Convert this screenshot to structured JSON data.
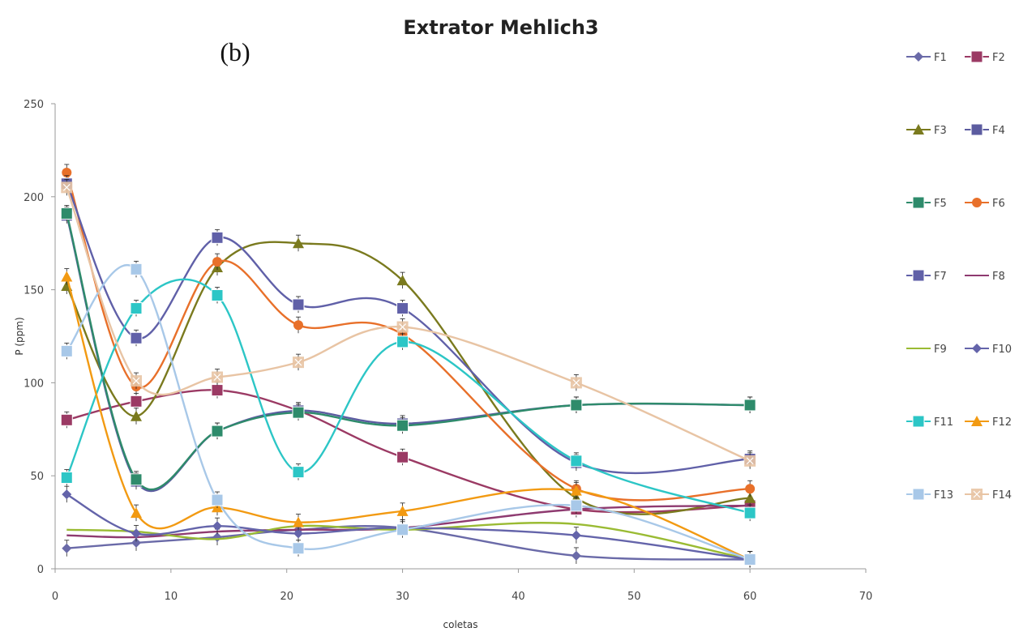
{
  "chart_data": {
    "type": "line",
    "title": "Extrator Mehlich3",
    "panel_label": "(b)",
    "xlabel": "coletas",
    "ylabel": "P (ppm)",
    "xlim": [
      0,
      70
    ],
    "ylim": [
      0,
      250
    ],
    "xticks": [
      0,
      10,
      20,
      30,
      40,
      50,
      60,
      70
    ],
    "yticks": [
      0,
      50,
      100,
      150,
      200,
      250
    ],
    "grid": false,
    "legend_position": "right",
    "x": [
      1,
      7,
      14,
      21,
      30,
      45,
      60
    ],
    "series": [
      {
        "name": "F1",
        "color": "#6a6aa8",
        "marker": "diamond",
        "values": [
          11,
          14,
          17,
          21,
          22,
          7,
          5
        ]
      },
      {
        "name": "F2",
        "color": "#9b3a64",
        "marker": "square",
        "values": [
          80,
          90,
          96,
          85,
          60,
          32,
          34
        ]
      },
      {
        "name": "F3",
        "color": "#7a7a1e",
        "marker": "triangle",
        "values": [
          152,
          82,
          162,
          175,
          155,
          38,
          38
        ]
      },
      {
        "name": "F4",
        "color": "#5c5ca0",
        "marker": "square",
        "values": [
          190,
          47,
          74,
          85,
          78,
          88,
          88
        ]
      },
      {
        "name": "F5",
        "color": "#2e8b6b",
        "marker": "square",
        "values": [
          191,
          48,
          74,
          84,
          77,
          88,
          88
        ]
      },
      {
        "name": "F6",
        "color": "#e8702a",
        "marker": "circle",
        "values": [
          213,
          98,
          165,
          131,
          126,
          43,
          43
        ]
      },
      {
        "name": "F7",
        "color": "#6060a8",
        "marker": "square",
        "values": [
          207,
          124,
          178,
          142,
          140,
          57,
          59
        ]
      },
      {
        "name": "F8",
        "color": "#8e3a70",
        "marker": "none",
        "values": [
          18,
          17,
          20,
          21,
          22,
          32,
          34
        ]
      },
      {
        "name": "F9",
        "color": "#9abb33",
        "marker": "none",
        "values": [
          21,
          20,
          16,
          23,
          21,
          24,
          5
        ]
      },
      {
        "name": "F10",
        "color": "#6464aa",
        "marker": "diamond",
        "values": [
          40,
          19,
          23,
          19,
          22,
          18,
          5
        ]
      },
      {
        "name": "F11",
        "color": "#2cc6c6",
        "marker": "square",
        "values": [
          49,
          140,
          147,
          52,
          122,
          58,
          30
        ]
      },
      {
        "name": "F12",
        "color": "#f29a12",
        "marker": "triangle",
        "values": [
          157,
          30,
          33,
          25,
          31,
          42,
          5
        ]
      },
      {
        "name": "F13",
        "color": "#a8c8e8",
        "marker": "square",
        "values": [
          117,
          161,
          37,
          11,
          21,
          34,
          5
        ]
      },
      {
        "name": "F14",
        "color": "#e8c4a4",
        "marker": "cross",
        "values": [
          205,
          101,
          103,
          111,
          130,
          100,
          58
        ]
      }
    ]
  }
}
